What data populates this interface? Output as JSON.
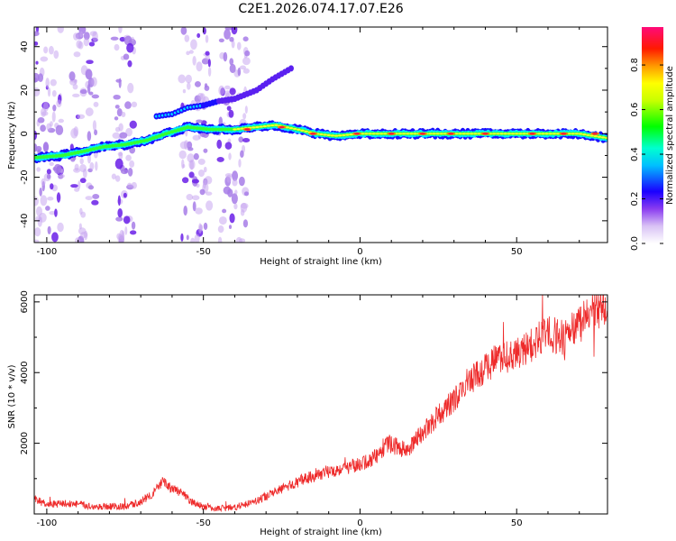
{
  "chart_data": [
    {
      "type": "heatmap",
      "title": "C2E1.2026.074.17.07.E26",
      "xlabel": "Height of straight line (km)",
      "ylabel": "Frequency (Hz)",
      "xlim": [
        -104,
        79
      ],
      "ylim": [
        -50,
        49
      ],
      "xticks": [
        -100,
        -50,
        0,
        50
      ],
      "yticks": [
        -40,
        -20,
        0,
        20,
        40
      ],
      "colorbar": {
        "label": "Normalized spectral amplitude",
        "range": [
          0.0,
          0.97
        ],
        "ticks": [
          "0.0",
          "0.2",
          "0.4",
          "0.6",
          "0.8"
        ],
        "tick_values": [
          0.0,
          0.2,
          0.4,
          0.6,
          0.8
        ],
        "colors": [
          "#ffffff",
          "#c8a8f0",
          "#6a1ee8",
          "#0000ff",
          "#00ffff",
          "#00ff00",
          "#ffff00",
          "#ff8800",
          "#ff0000",
          "#ff0088"
        ]
      },
      "main_track": [
        {
          "x": -104,
          "y": -11
        },
        {
          "x": -95,
          "y": -10
        },
        {
          "x": -88,
          "y": -8
        },
        {
          "x": -82,
          "y": -6
        },
        {
          "x": -75,
          "y": -5
        },
        {
          "x": -68,
          "y": -3
        },
        {
          "x": -62,
          "y": 0
        },
        {
          "x": -55,
          "y": 3
        },
        {
          "x": -48,
          "y": 2
        },
        {
          "x": -40,
          "y": 2
        },
        {
          "x": -33,
          "y": 3
        },
        {
          "x": -27,
          "y": 4
        },
        {
          "x": -20,
          "y": 2
        },
        {
          "x": -14,
          "y": 0
        },
        {
          "x": -8,
          "y": -1
        },
        {
          "x": 0,
          "y": 0
        },
        {
          "x": 10,
          "y": 0
        },
        {
          "x": 25,
          "y": 0
        },
        {
          "x": 40,
          "y": 0
        },
        {
          "x": 55,
          "y": 0
        },
        {
          "x": 70,
          "y": 0
        },
        {
          "x": 79,
          "y": -2
        }
      ],
      "branch_track": [
        {
          "x": -65,
          "y": 8
        },
        {
          "x": -60,
          "y": 9
        },
        {
          "x": -55,
          "y": 12
        },
        {
          "x": -50,
          "y": 13
        },
        {
          "x": -45,
          "y": 15
        },
        {
          "x": -40,
          "y": 16
        },
        {
          "x": -33,
          "y": 20
        },
        {
          "x": -28,
          "y": 25
        },
        {
          "x": -22,
          "y": 30
        }
      ],
      "hot_spots": [
        {
          "x": -36,
          "y": 2
        },
        {
          "x": -25,
          "y": 3
        },
        {
          "x": -15,
          "y": 0
        },
        {
          "x": -1,
          "y": 0
        },
        {
          "x": 10,
          "y": 0
        },
        {
          "x": 20,
          "y": 0
        },
        {
          "x": 29,
          "y": 0
        },
        {
          "x": 40,
          "y": 0
        },
        {
          "x": 55,
          "y": 0
        },
        {
          "x": 65,
          "y": 0
        },
        {
          "x": 75,
          "y": 0
        }
      ],
      "scatter_bands_km": [
        [
          -104,
          -95
        ],
        [
          -92,
          -84
        ],
        [
          -79,
          -72
        ],
        [
          -57,
          -48
        ],
        [
          -45,
          -36
        ]
      ]
    },
    {
      "type": "line",
      "xlabel": "Height of straight line (km)",
      "ylabel": "SNR (10 * v/v)",
      "xlim": [
        -104,
        79
      ],
      "ylim": [
        0,
        6200
      ],
      "xticks": [
        -100,
        -50,
        0,
        50
      ],
      "yticks": [
        2000,
        4000,
        6000
      ],
      "line_color": "#ee2a2a",
      "series": [
        {
          "name": "SNR",
          "x": [
            -104,
            -100,
            -95,
            -90,
            -85,
            -80,
            -75,
            -70,
            -66,
            -63,
            -60,
            -57,
            -54,
            -50,
            -45,
            -40,
            -35,
            -30,
            -25,
            -20,
            -15,
            -10,
            -5,
            0,
            3,
            6,
            9,
            12,
            15,
            18,
            22,
            25,
            30,
            35,
            40,
            45,
            48,
            52,
            56,
            60,
            65,
            70,
            75,
            79
          ],
          "y": [
            450,
            250,
            300,
            280,
            200,
            220,
            200,
            350,
            600,
            900,
            700,
            600,
            350,
            200,
            150,
            200,
            300,
            500,
            700,
            900,
            1100,
            1200,
            1300,
            1400,
            1500,
            1700,
            2000,
            1900,
            1800,
            2100,
            2500,
            2800,
            3200,
            3800,
            4100,
            4500,
            4400,
            4600,
            4900,
            5100,
            5000,
            5400,
            5700,
            6000
          ]
        }
      ]
    }
  ]
}
